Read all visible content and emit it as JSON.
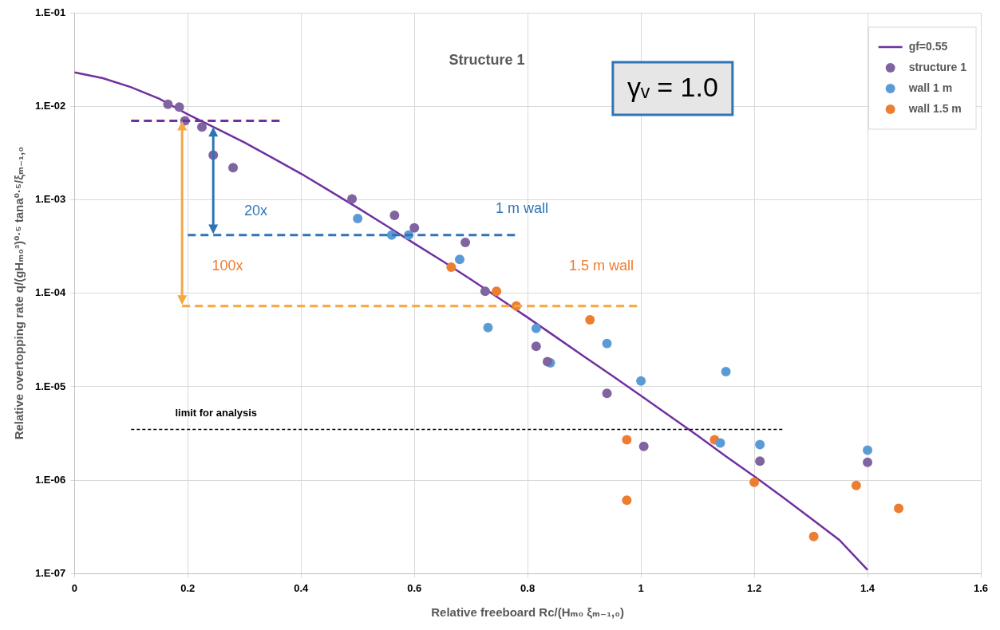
{
  "chart_data": {
    "type": "scatter",
    "title": "Structure 1",
    "x_label": "Relative freeboard Rc/(Hₘ₀ ξₘ₋₁,₀)",
    "y_label": "Relative overtopping rate q/(gHₘ₀³)⁰·⁵ tana⁰·⁵/ξₘ₋₁,₀",
    "log": "y",
    "grid": true,
    "legend": "upper right",
    "xlim": [
      0,
      1.6
    ],
    "xticks": [
      0,
      0.2,
      0.4,
      0.6,
      0.8,
      1,
      1.2,
      1.4,
      1.6
    ],
    "ylim": [
      1e-07,
      0.1
    ],
    "yticks": [
      {
        "value": 1e-07,
        "label": "1.E-07"
      },
      {
        "value": 1e-06,
        "label": "1.E-06"
      },
      {
        "value": 1e-05,
        "label": "1.E-05"
      },
      {
        "value": 0.0001,
        "label": "1.E-04"
      },
      {
        "value": 0.001,
        "label": "1.E-03"
      },
      {
        "value": 0.01,
        "label": "1.E-02"
      },
      {
        "value": 0.1,
        "label": "1.E-01"
      }
    ],
    "series": [
      {
        "name": "gf=0.55",
        "color": "#7030a0",
        "type": "line",
        "marker": "none",
        "line_style": "solid",
        "x": [
          0,
          0.05,
          0.1,
          0.15,
          0.2,
          0.25,
          0.3,
          0.35,
          0.4,
          0.45,
          0.5,
          0.55,
          0.6,
          0.65,
          0.7,
          0.75,
          0.8,
          0.85,
          0.9,
          0.95,
          1.0,
          1.05,
          1.1,
          1.15,
          1.2,
          1.25,
          1.3,
          1.35,
          1.4
        ],
        "values": [
          0.023,
          0.02,
          0.016,
          0.012,
          0.0082,
          0.0058,
          0.0041,
          0.0028,
          0.0019,
          0.00125,
          0.00082,
          0.00053,
          0.00034,
          0.00022,
          0.00014,
          8.8e-05,
          5.5e-05,
          3.4e-05,
          2.1e-05,
          1.3e-05,
          8e-06,
          4.9e-06,
          3e-06,
          1.8e-06,
          1.1e-06,
          6.6e-07,
          3.9e-07,
          2.3e-07,
          1.1e-07
        ]
      },
      {
        "name": "structure 1",
        "color": "#8064a2",
        "type": "scatter",
        "marker": "circle",
        "x": [
          0.165,
          0.185,
          0.195,
          0.225,
          0.245,
          0.28,
          0.49,
          0.565,
          0.6,
          0.69,
          0.725,
          0.815,
          0.835,
          0.94,
          1.005,
          1.21,
          1.4
        ],
        "values": [
          0.0105,
          0.0098,
          0.007,
          0.006,
          0.003,
          0.0022,
          0.00102,
          0.00068,
          0.0005,
          0.00035,
          0.000105,
          2.7e-05,
          1.85e-05,
          8.5e-06,
          2.3e-06,
          1.6e-06,
          1.55e-06
        ]
      },
      {
        "name": "wall 1 m",
        "color": "#5b9bd5",
        "type": "scatter",
        "marker": "circle",
        "x": [
          0.5,
          0.56,
          0.59,
          0.68,
          0.73,
          0.815,
          0.84,
          0.94,
          1.0,
          1.15,
          1.14,
          1.21,
          1.4
        ],
        "values": [
          0.00063,
          0.00042,
          0.00042,
          0.00023,
          4.3e-05,
          4.2e-05,
          1.8e-05,
          2.9e-05,
          1.15e-05,
          1.45e-05,
          2.5e-06,
          2.4e-06,
          2.1e-06
        ]
      },
      {
        "name": "wall 1.5 m",
        "color": "#ed7d31",
        "type": "scatter",
        "marker": "circle",
        "x": [
          0.665,
          0.745,
          0.78,
          0.91,
          0.975,
          0.975,
          1.13,
          1.2,
          1.305,
          1.38,
          1.455
        ],
        "values": [
          0.00019,
          0.000105,
          7.3e-05,
          5.2e-05,
          2.7e-06,
          6.1e-07,
          2.7e-06,
          9.5e-07,
          2.5e-07,
          8.8e-07,
          5e-07
        ]
      }
    ],
    "annotations": {
      "box_text": "γᵥ = 1.0",
      "lines": [
        {
          "x": [
            0.1,
            0.37
          ],
          "y": 0.007,
          "color": "#7030a0",
          "line_style": "dashed"
        },
        {
          "x": [
            0.2,
            0.78
          ],
          "y": 0.00042,
          "color": "#2e75b6",
          "line_style": "dashed"
        },
        {
          "x": [
            0.19,
            1.0
          ],
          "y": 7.3e-05,
          "color": "#f4a742",
          "line_style": "dashed"
        },
        {
          "x": [
            0.1,
            1.25
          ],
          "y": 3.5e-06,
          "color": "#000000",
          "line_style": "dashed"
        }
      ],
      "arrows": [
        {
          "x": 0.245,
          "y": [
            0.006,
            0.00043
          ],
          "color": "#2e75b6"
        },
        {
          "x": 0.19,
          "y": [
            0.007,
            7.5e-05
          ],
          "color": "#f4a742"
        }
      ],
      "texts": [
        {
          "text": "20x",
          "x": 0.32,
          "y": 0.00075,
          "color": "#2e75b6"
        },
        {
          "text": "1 m wall",
          "x": 0.79,
          "y": 0.0008,
          "color": "#2e75b6"
        },
        {
          "text": "100x",
          "x": 0.27,
          "y": 0.000195,
          "color": "#ed7d31"
        },
        {
          "text": "1.5 m wall",
          "x": 0.93,
          "y": 0.000195,
          "color": "#ed7d31"
        },
        {
          "text": "limit for analysis",
          "x": 0.25,
          "y": 5.2e-06,
          "color": "#000000"
        }
      ]
    }
  }
}
